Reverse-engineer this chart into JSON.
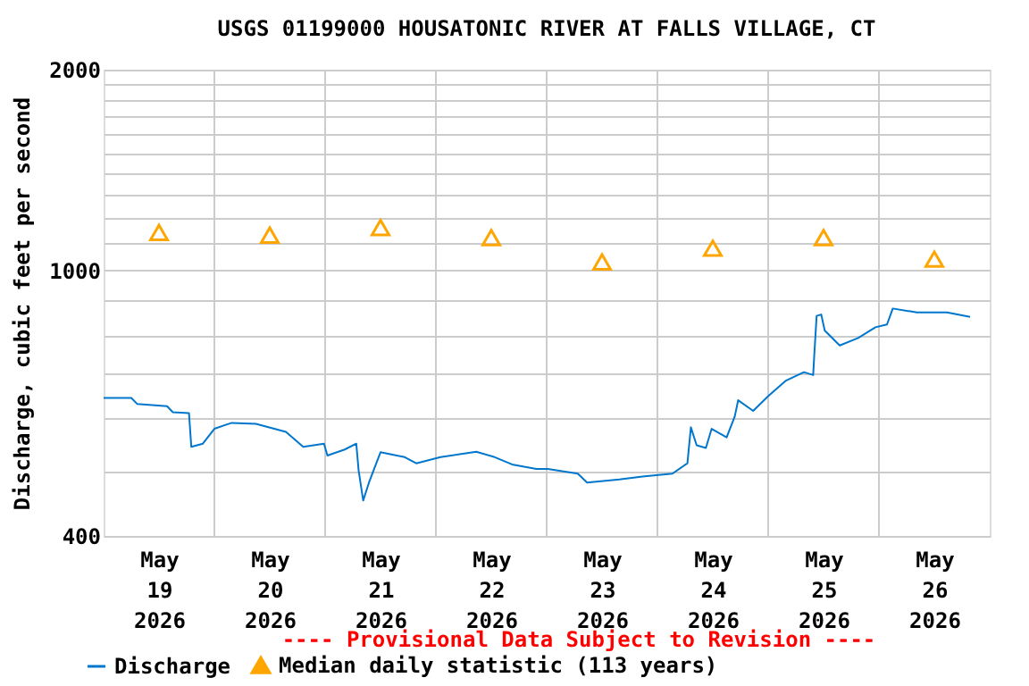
{
  "chart_data": {
    "type": "line",
    "title": "USGS 01199000 HOUSATONIC RIVER AT FALLS VILLAGE, CT",
    "ylabel": "Discharge, cubic feet per second",
    "annotations": [
      "---- Provisional Data Subject to Revision ----"
    ],
    "log": "y",
    "grid": true,
    "legend": "bottom",
    "xlim": [
      "2026-05-19T00:00",
      "2026-05-27T00:00"
    ],
    "xticks": [
      {
        "value": "2026-05-19T12:00",
        "label": "May 19 2026"
      },
      {
        "value": "2026-05-20T00:00",
        "label": null
      },
      {
        "value": "2026-05-20T12:00",
        "label": "May 20 2026"
      },
      {
        "value": "2026-05-21T00:00",
        "label": null
      },
      {
        "value": "2026-05-21T12:00",
        "label": "May 21 2026"
      },
      {
        "value": "2026-05-22T00:00",
        "label": null
      },
      {
        "value": "2026-05-22T12:00",
        "label": "May 22 2026"
      },
      {
        "value": "2026-05-23T00:00",
        "label": null
      },
      {
        "value": "2026-05-23T12:00",
        "label": "May 23 2026"
      },
      {
        "value": "2026-05-24T00:00",
        "label": null
      },
      {
        "value": "2026-05-24T12:00",
        "label": "May 24 2026"
      },
      {
        "value": "2026-05-25T00:00",
        "label": null
      },
      {
        "value": "2026-05-25T12:00",
        "label": "May 25 2026"
      },
      {
        "value": "2026-05-26T00:00",
        "label": null
      },
      {
        "value": "2026-05-26T12:00",
        "label": "May 26 2026"
      }
    ],
    "ylim": [
      400,
      2000
    ],
    "yticks": [
      400,
      {
        "value": 500,
        "label": null
      },
      {
        "value": 600,
        "label": null
      },
      {
        "value": 700,
        "label": null
      },
      {
        "value": 800,
        "label": null
      },
      {
        "value": 900,
        "label": null
      },
      1000,
      {
        "value": 1100,
        "label": null
      },
      {
        "value": 1200,
        "label": null
      },
      {
        "value": 1300,
        "label": null
      },
      {
        "value": 1400,
        "label": null
      },
      {
        "value": 1500,
        "label": null
      },
      {
        "value": 1600,
        "label": null
      },
      {
        "value": 1700,
        "label": null
      },
      {
        "value": 1800,
        "label": null
      },
      {
        "value": 1900,
        "label": null
      },
      2000
    ],
    "series": [
      {
        "name": "Discharge",
        "marker": "none",
        "color": "#0077cc",
        "x": [
          "2026-05-19T00:00",
          "2026-05-19T06:00",
          "2026-05-19T07:15",
          "2026-05-19T13:45",
          "2026-05-19T15:00",
          "2026-05-19T18:30",
          "2026-05-19T19:00",
          "2026-05-19T21:30",
          "2026-05-20T00:00",
          "2026-05-20T03:45",
          "2026-05-20T09:00",
          "2026-05-20T15:30",
          "2026-05-20T19:15",
          "2026-05-20T23:45",
          "2026-05-21T00:30",
          "2026-05-21T04:15",
          "2026-05-21T06:45",
          "2026-05-21T07:15",
          "2026-05-21T08:15",
          "2026-05-21T09:30",
          "2026-05-21T12:00",
          "2026-05-21T17:15",
          "2026-05-21T19:45",
          "2026-05-22T01:00",
          "2026-05-22T08:45",
          "2026-05-22T12:45",
          "2026-05-22T16:30",
          "2026-05-22T21:45",
          "2026-05-23T00:15",
          "2026-05-23T06:45",
          "2026-05-23T08:45",
          "2026-05-23T15:45",
          "2026-05-23T20:45",
          "2026-05-24T03:15",
          "2026-05-24T06:30",
          "2026-05-24T07:15",
          "2026-05-24T08:30",
          "2026-05-24T10:30",
          "2026-05-24T11:45",
          "2026-05-24T15:00",
          "2026-05-24T16:45",
          "2026-05-24T17:30",
          "2026-05-24T20:45",
          "2026-05-25T00:00",
          "2026-05-25T03:45",
          "2026-05-25T07:45",
          "2026-05-25T09:45",
          "2026-05-25T10:00",
          "2026-05-25T10:30",
          "2026-05-25T11:30",
          "2026-05-25T12:15",
          "2026-05-25T15:30",
          "2026-05-25T19:30",
          "2026-05-25T23:15",
          "2026-05-26T01:45",
          "2026-05-26T03:00",
          "2026-05-26T08:15",
          "2026-05-26T14:45",
          "2026-05-26T19:45"
        ],
        "values": [
          644,
          644,
          631,
          626,
          613,
          611,
          544,
          550,
          579,
          591,
          589,
          573,
          544,
          550,
          528,
          539,
          550,
          502,
          452,
          481,
          534,
          525,
          514,
          525,
          535,
          525,
          512,
          504,
          504,
          496,
          481,
          486,
          491,
          496,
          514,
          582,
          547,
          542,
          579,
          562,
          604,
          639,
          616,
          648,
          683,
          704,
          697,
          749,
          855,
          859,
          813,
          772,
          792,
          822,
          830,
          877,
          865,
          865,
          852
        ]
      },
      {
        "name": "Median daily statistic (113 years)",
        "type": "scatter",
        "marker": "triangle",
        "color": "#ffa500",
        "x": [
          "2026-05-19T12:00",
          "2026-05-20T12:00",
          "2026-05-21T12:00",
          "2026-05-22T12:00",
          "2026-05-23T12:00",
          "2026-05-24T12:00",
          "2026-05-25T12:00",
          "2026-05-26T12:00"
        ],
        "values": [
          1140,
          1130,
          1160,
          1120,
          1030,
          1080,
          1120,
          1040
        ]
      }
    ]
  }
}
